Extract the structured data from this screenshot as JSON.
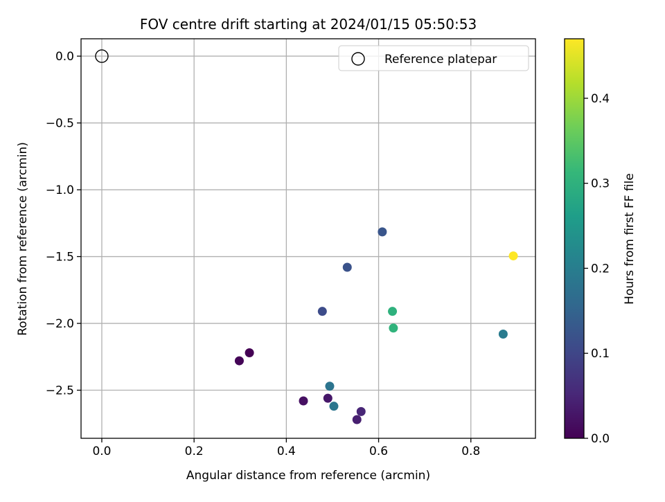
{
  "chart_data": {
    "type": "scatter",
    "title": "FOV centre drift starting at 2024/01/15 05:50:53",
    "xlabel": "Angular distance from reference (arcmin)",
    "ylabel": "Rotation from reference (arcmin)",
    "xlim": [
      -0.045,
      0.94
    ],
    "ylim": [
      -2.86,
      0.13
    ],
    "x_ticks": [
      0.0,
      0.2,
      0.4,
      0.6,
      0.8
    ],
    "x_tick_labels": [
      "0.0",
      "0.2",
      "0.4",
      "0.6",
      "0.8"
    ],
    "y_ticks": [
      0.0,
      -0.5,
      -1.0,
      -1.5,
      -2.0,
      -2.5
    ],
    "y_tick_labels": [
      "0.0",
      "−0.5",
      "−1.0",
      "−1.5",
      "−2.0",
      "−2.5"
    ],
    "grid": true,
    "legend": {
      "placement": "top-right",
      "entries": [
        {
          "label": "Reference platepar",
          "marker": "hollow-circle"
        }
      ]
    },
    "reference_point": {
      "x": 0.0,
      "y": 0.0
    },
    "colorbar": {
      "label": "Hours from first FF file",
      "range": [
        0.0,
        0.47
      ],
      "ticks": [
        0.0,
        0.1,
        0.2,
        0.3,
        0.4
      ],
      "tick_labels": [
        "0.0",
        "0.1",
        "0.2",
        "0.3",
        "0.4"
      ],
      "colormap": "viridis",
      "colormap_stops": [
        "#440154",
        "#482878",
        "#3e4989",
        "#31688e",
        "#26828e",
        "#1f9e89",
        "#35b779",
        "#6ece58",
        "#b5de2b",
        "#fde725"
      ]
    },
    "points": [
      {
        "x": 0.32,
        "y": -2.22,
        "c": 0.0
      },
      {
        "x": 0.298,
        "y": -2.28,
        "c": 0.005
      },
      {
        "x": 0.437,
        "y": -2.58,
        "c": 0.02
      },
      {
        "x": 0.49,
        "y": -2.56,
        "c": 0.03
      },
      {
        "x": 0.553,
        "y": -2.72,
        "c": 0.04
      },
      {
        "x": 0.562,
        "y": -2.66,
        "c": 0.05
      },
      {
        "x": 0.478,
        "y": -1.91,
        "c": 0.11
      },
      {
        "x": 0.532,
        "y": -1.58,
        "c": 0.12
      },
      {
        "x": 0.608,
        "y": -1.315,
        "c": 0.125
      },
      {
        "x": 0.494,
        "y": -2.47,
        "c": 0.18
      },
      {
        "x": 0.503,
        "y": -2.62,
        "c": 0.185
      },
      {
        "x": 0.87,
        "y": -2.08,
        "c": 0.195
      },
      {
        "x": 0.63,
        "y": -1.91,
        "c": 0.3
      },
      {
        "x": 0.632,
        "y": -2.035,
        "c": 0.305
      },
      {
        "x": 0.892,
        "y": -1.495,
        "c": 0.47
      }
    ]
  }
}
